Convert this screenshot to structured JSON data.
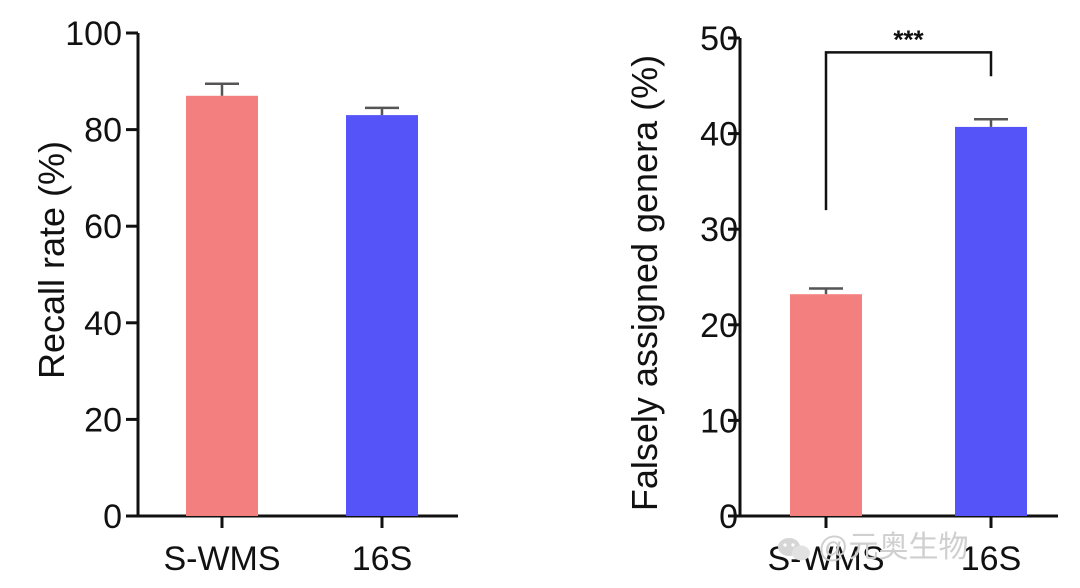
{
  "chart_data": [
    {
      "type": "bar",
      "title": "",
      "categories": [
        "S-WMS",
        "16S"
      ],
      "values": [
        87,
        83
      ],
      "errors": [
        2.5,
        1.5
      ],
      "colors": [
        "#f47f7f",
        "#5454f8"
      ],
      "xlabel": "",
      "ylabel": "Recall rate (%)",
      "ylim": [
        0,
        100
      ],
      "yticks": [
        0,
        20,
        40,
        60,
        80,
        100
      ],
      "ytick_labels": [
        "0",
        "20",
        "40",
        "60",
        "80",
        "100"
      ],
      "grid": false
    },
    {
      "type": "bar",
      "title": "",
      "categories": [
        "S-WMS",
        "16S"
      ],
      "values": [
        23.2,
        40.7
      ],
      "errors": [
        0.6,
        0.8
      ],
      "colors": [
        "#f47f7f",
        "#5454f8"
      ],
      "xlabel": "",
      "ylabel": "Falsely assigned genera (%)",
      "ylim": [
        0,
        50
      ],
      "yticks": [
        0,
        10,
        20,
        30,
        40,
        50
      ],
      "ytick_labels": [
        "0",
        "10",
        "20",
        "30",
        "40",
        "50"
      ],
      "grid": false,
      "annotations": [
        {
          "text": "***",
          "type": "significance-bracket",
          "between": [
            "S-WMS",
            "16S"
          ],
          "y": 48.5,
          "left_drop_to": 32,
          "right_drop_to": 46
        }
      ]
    }
  ],
  "watermark": {
    "text": "@元奥生物",
    "icon": "wechat-icon"
  }
}
